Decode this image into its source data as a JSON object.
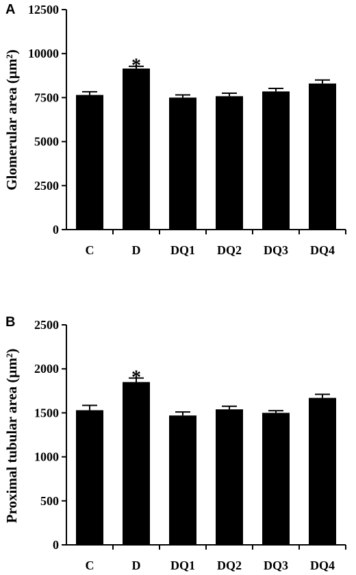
{
  "chart_data": [
    {
      "type": "bar",
      "panel": "A",
      "categories": [
        "C",
        "D",
        "DQ1",
        "DQ2",
        "DQ3",
        "DQ4"
      ],
      "values": [
        7650,
        9150,
        7500,
        7580,
        7850,
        8300
      ],
      "errors": [
        180,
        130,
        150,
        170,
        170,
        200
      ],
      "significance": [
        "",
        "*",
        "",
        "",
        "",
        ""
      ],
      "ylabel": "Glomerular area (µm²)",
      "xlabel": "",
      "ylim": [
        0,
        12500
      ],
      "yticks": [
        0,
        2500,
        5000,
        7500,
        10000,
        12500
      ],
      "bar_color": "#000000",
      "grid": false
    },
    {
      "type": "bar",
      "panel": "B",
      "categories": [
        "C",
        "D",
        "DQ1",
        "DQ2",
        "DQ3",
        "DQ4"
      ],
      "values": [
        1530,
        1850,
        1470,
        1540,
        1500,
        1670
      ],
      "errors": [
        55,
        45,
        40,
        35,
        25,
        40
      ],
      "significance": [
        "",
        "*",
        "",
        "",
        "",
        ""
      ],
      "ylabel": "Proximal tubular area (µm²)",
      "xlabel": "",
      "ylim": [
        0,
        2500
      ],
      "yticks": [
        0,
        500,
        1000,
        1500,
        2000,
        2500
      ],
      "bar_color": "#000000",
      "grid": false
    }
  ]
}
